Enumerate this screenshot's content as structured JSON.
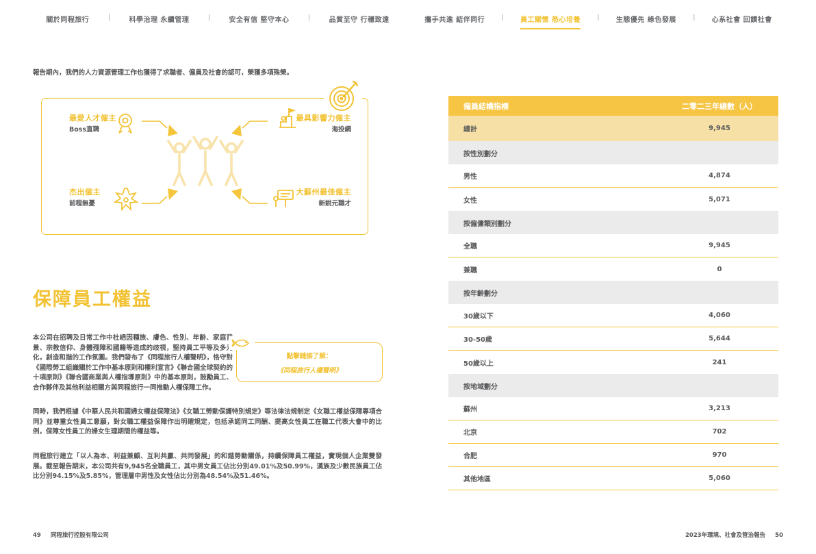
{
  "colors": {
    "accent_yellow": "#F2C233",
    "table_header_bg": "#F6C544",
    "table_total_bg": "#F6E0A5",
    "table_section_bg": "#EBEBEB",
    "body_text": "#58595B"
  },
  "nav": {
    "separator": "|",
    "tabs": [
      {
        "label": "關於同程旅行",
        "active": false
      },
      {
        "label": "科學治理 永續管理",
        "active": false
      },
      {
        "label": "安全有信 堅守本心",
        "active": false
      },
      {
        "label": "品質至守 行穩致遠",
        "active": false
      },
      {
        "label": "攜手共進 結伴同行",
        "active": false
      },
      {
        "label": "員工關懷 悉心培養",
        "active": true
      },
      {
        "label": "生態優先 綠色發展",
        "active": false
      },
      {
        "label": "心系社會 回饋社會",
        "active": false
      }
    ]
  },
  "intro": "報告期內，我們的人力資源管理工作也獲得了求職者、僱員及社會的認可，榮獲多項殊榮。",
  "awards": {
    "items": [
      {
        "title": "最愛人才僱主",
        "subtitle": "Boss直聘",
        "icon": "medal-icon"
      },
      {
        "title": "最具影響力僱主",
        "subtitle": "海投網",
        "icon": "podium-icon"
      },
      {
        "title": "杰出僱主",
        "subtitle": "前程無憂",
        "icon": "starburst-icon"
      },
      {
        "title": "大蘇州最佳僱主",
        "subtitle": "新銳元職才",
        "icon": "billboard-icon"
      }
    ]
  },
  "section": {
    "title": "保障員工權益",
    "paragraphs": [
      "本公司在招聘及日常工作中杜絕因種族、膚色、性別、年齡、家庭背景、宗教信仰、身體殘障和國籍等造成的歧視，堅持員工平等及多元化，創造和諧的工作氛圍。我們發布了《同程旅行人權聲明》，恪守對《國際勞工組織關於工作中基本原則和權利宣言》《聯合國全球契約的十項原則》《聯合國商業與人權指導原則》中的基本原則，鼓勵員工、合作夥伴及其他利益相關方與同程旅行一同推動人權保障工作。",
      "同時，我們根據《中華人民共和國婦女權益保障法》《女職工勞動保護特別規定》等法律法規制定《女職工權益保障專項合同》並尊重女性員工意願，對女職工權益保障作出明確規定，包括承諾同工同酬、提高女性員工在職工代表大會中的比例，保障女性員工的婦女生理期間的權益等。",
      "同程旅行建立「以人為本、利益兼顧、互利共贏、共同發展」的和諧勞動關係，持續保障員工權益，實現個人企業雙發展。截至報告期末，本公司共有9,945名全職員工，其中男女員工佔比分別49.01%及50.99%，漢族及少數民族員工佔比分別94.15%及5.85%，管理層中男性及女性佔比分別為48.54%及51.46%。"
    ],
    "callout": {
      "line1": "點擊鏈接了解：",
      "line2": "《同程旅行人權聲明》"
    }
  },
  "table": {
    "header": {
      "label": "僱員結構指標",
      "value": "二零二三年總數（人）"
    },
    "rows": [
      {
        "type": "total",
        "label": "總計",
        "value": "9,945"
      },
      {
        "type": "section",
        "label": "按性別劃分",
        "value": ""
      },
      {
        "type": "data",
        "label": "男性",
        "value": "4,874"
      },
      {
        "type": "data",
        "label": "女性",
        "value": "5,071"
      },
      {
        "type": "section",
        "label": "按僱傭類別劃分",
        "value": ""
      },
      {
        "type": "data",
        "label": "全職",
        "value": "9,945"
      },
      {
        "type": "data",
        "label": "兼職",
        "value": "0"
      },
      {
        "type": "section",
        "label": "按年齡劃分",
        "value": ""
      },
      {
        "type": "data",
        "label": "30歲以下",
        "value": "4,060"
      },
      {
        "type": "data",
        "label": "30-50歲",
        "value": "5,644"
      },
      {
        "type": "data",
        "label": "50歲以上",
        "value": "241"
      },
      {
        "type": "section",
        "label": "按地域劃分",
        "value": ""
      },
      {
        "type": "data",
        "label": "蘇州",
        "value": "3,213"
      },
      {
        "type": "data",
        "label": "北京",
        "value": "702"
      },
      {
        "type": "data",
        "label": "合肥",
        "value": "970"
      },
      {
        "type": "data",
        "label": "其他地區",
        "value": "5,060"
      }
    ]
  },
  "chart_data": {
    "type": "table",
    "title": "僱員結構指標",
    "columns": [
      "僱員結構指標",
      "二零二三年總數（人）"
    ],
    "total": 9945,
    "groups": [
      {
        "name": "按性別劃分",
        "rows": [
          [
            "男性",
            4874
          ],
          [
            "女性",
            5071
          ]
        ]
      },
      {
        "name": "按僱傭類別劃分",
        "rows": [
          [
            "全職",
            9945
          ],
          [
            "兼職",
            0
          ]
        ]
      },
      {
        "name": "按年齡劃分",
        "rows": [
          [
            "30歲以下",
            4060
          ],
          [
            "30-50歲",
            5644
          ],
          [
            "50歲以上",
            241
          ]
        ]
      },
      {
        "name": "按地域劃分",
        "rows": [
          [
            "蘇州",
            3213
          ],
          [
            "北京",
            702
          ],
          [
            "合肥",
            970
          ],
          [
            "其他地區",
            5060
          ]
        ]
      }
    ]
  },
  "footer": {
    "left_page_number": "49",
    "company": "同程旅行控股有限公司",
    "report_title": "2023年環境、社會及管治報告",
    "right_page_number": "50"
  }
}
